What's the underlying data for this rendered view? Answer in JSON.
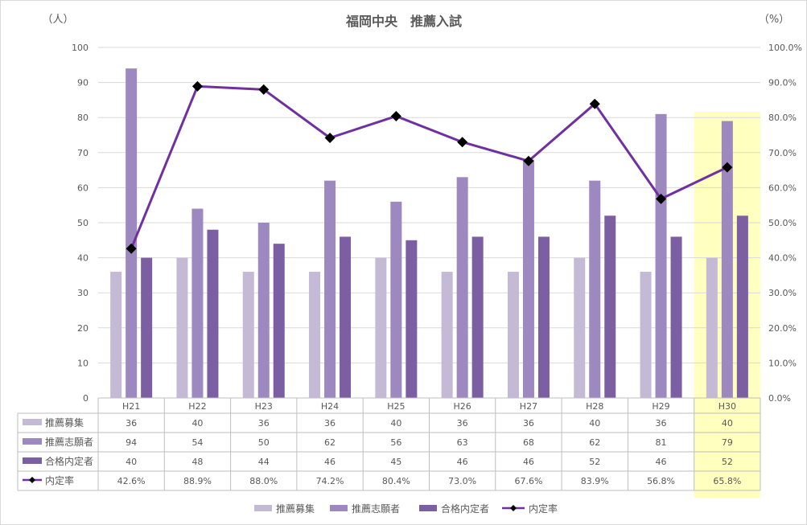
{
  "chart_data": {
    "type": "bar",
    "title": "福岡中央　推薦入試",
    "y_unit_left": "（人）",
    "y_unit_right": "（%）",
    "ylim": [
      0,
      100
    ],
    "y2lim": [
      0,
      100
    ],
    "y_ticks": [
      "0",
      "10",
      "20",
      "30",
      "40",
      "50",
      "60",
      "70",
      "80",
      "90",
      "100"
    ],
    "y2_ticks": [
      "0.0%",
      "10.0%",
      "20.0%",
      "30.0%",
      "40.0%",
      "50.0%",
      "60.0%",
      "70.0%",
      "80.0%",
      "90.0%",
      "100.0%"
    ],
    "grid": true,
    "legend_position": "bottom",
    "categories": [
      "H21",
      "H22",
      "H23",
      "H24",
      "H25",
      "H26",
      "H27",
      "H28",
      "H29",
      "H30"
    ],
    "highlight_category": "H30",
    "highlight_color": "#ffffc0",
    "series": [
      {
        "name": "推薦募集",
        "kind": "bar",
        "color": "#c4bad6",
        "values": [
          36,
          40,
          36,
          36,
          40,
          36,
          36,
          40,
          36,
          40
        ],
        "labels": [
          "36",
          "40",
          "36",
          "36",
          "40",
          "36",
          "36",
          "40",
          "36",
          "40"
        ]
      },
      {
        "name": "推薦志願者",
        "kind": "bar",
        "color": "#9d89bf",
        "values": [
          94,
          54,
          50,
          62,
          56,
          63,
          68,
          62,
          81,
          79
        ],
        "labels": [
          "94",
          "54",
          "50",
          "62",
          "56",
          "63",
          "68",
          "62",
          "81",
          "79"
        ]
      },
      {
        "name": "合格内定者",
        "kind": "bar",
        "color": "#7c5fa3",
        "values": [
          40,
          48,
          44,
          46,
          45,
          46,
          46,
          52,
          46,
          52
        ],
        "labels": [
          "40",
          "48",
          "44",
          "46",
          "45",
          "46",
          "46",
          "52",
          "46",
          "52"
        ]
      },
      {
        "name": "内定率",
        "kind": "line",
        "axis": "right",
        "color": "#7030a0",
        "marker_color": "#000000",
        "values": [
          42.6,
          88.9,
          88.0,
          74.2,
          80.4,
          73.0,
          67.6,
          83.9,
          56.8,
          65.8
        ],
        "labels": [
          "42.6%",
          "88.9%",
          "88.0%",
          "74.2%",
          "80.4%",
          "73.0%",
          "67.6%",
          "83.9%",
          "56.8%",
          "65.8%"
        ]
      }
    ]
  }
}
